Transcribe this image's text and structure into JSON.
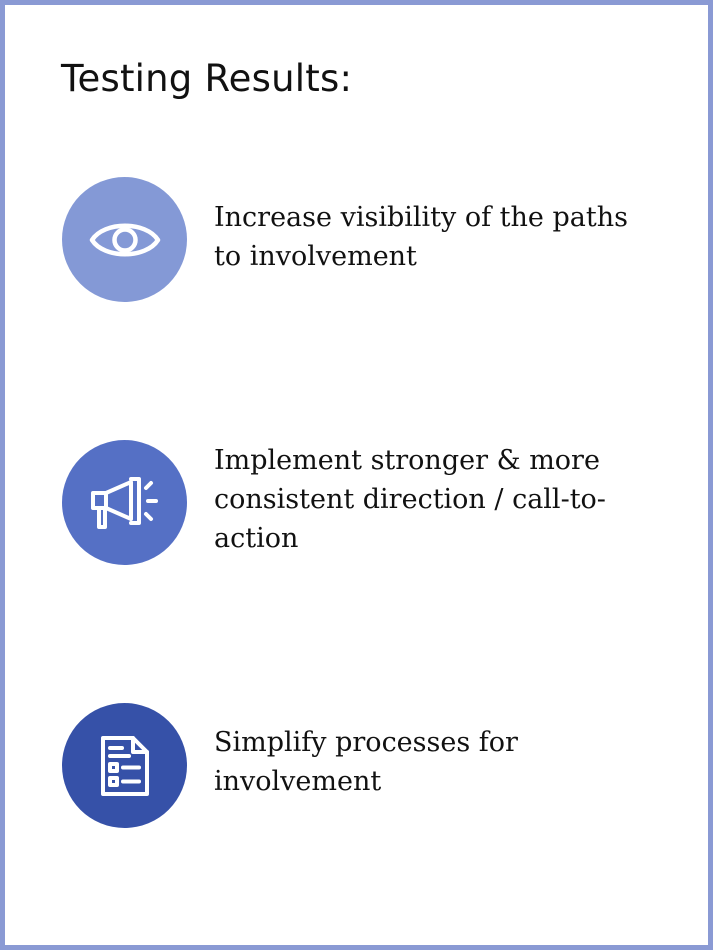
{
  "slide": {
    "title": "Testing Results:"
  },
  "items": [
    {
      "icon": "eye-icon",
      "color": "#8499d6",
      "text": "Increase visibility of the paths\nto involvement"
    },
    {
      "icon": "megaphone-icon",
      "color": "#5570c5",
      "text": "Implement stronger & more\nconsistent direction / call-to-\naction"
    },
    {
      "icon": "document-checklist-icon",
      "color": "#3651a8",
      "text": "Simplify processes for\ninvolvement"
    }
  ],
  "colors": {
    "border": "#8a9ad4",
    "text": "#111111",
    "background": "#ffffff"
  }
}
